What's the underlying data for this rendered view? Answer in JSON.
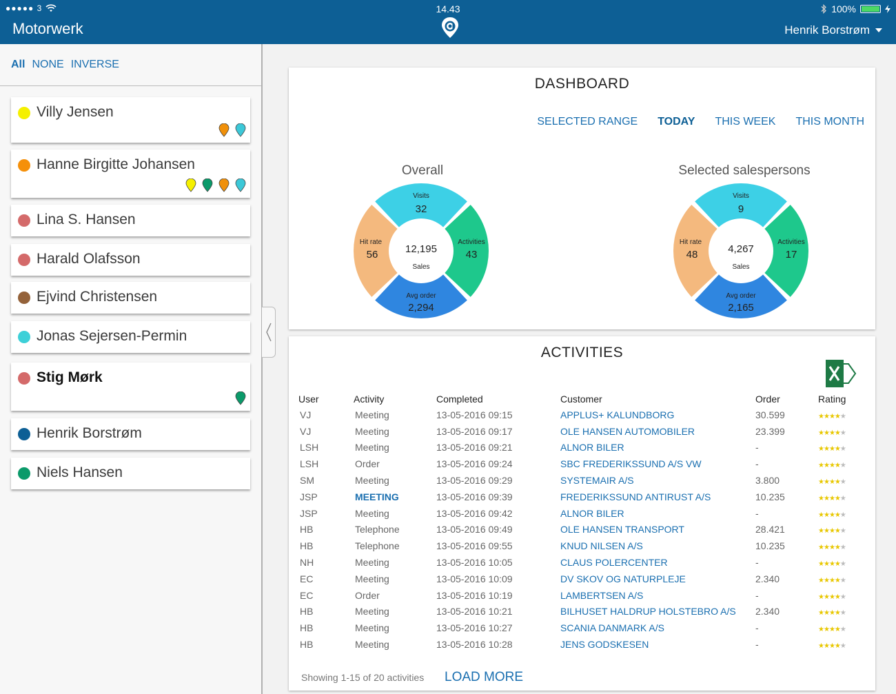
{
  "status": {
    "signal": "●●●●● 3",
    "time": "14.43",
    "battery": "100%"
  },
  "header": {
    "app_title": "Motorwerk",
    "user": "Henrik Borstrøm"
  },
  "filters": {
    "all": "All",
    "none": "NONE",
    "inverse": "INVERSE"
  },
  "salespersons": [
    {
      "name": "Villy Jensen",
      "color": "#f5f000",
      "bold": false,
      "pins": [
        "#f0900a",
        "#3cc8d8"
      ]
    },
    {
      "name": "Hanne Birgitte Johansen",
      "color": "#f5900a",
      "bold": false,
      "pins": [
        "#f5f000",
        "#0b9a6a",
        "#f0900a",
        "#3cc8d8"
      ]
    },
    {
      "name": "Lina S. Hansen",
      "color": "#d46a6a",
      "bold": false,
      "pins": []
    },
    {
      "name": "Harald Olafsson",
      "color": "#d46a6a",
      "bold": false,
      "pins": []
    },
    {
      "name": "Ejvind Christensen",
      "color": "#94623a",
      "bold": false,
      "pins": []
    },
    {
      "name": "Jonas Sejersen-Permin",
      "color": "#3dd0d8",
      "bold": false,
      "pins": []
    },
    {
      "name": "Stig Mørk",
      "color": "#d46a6a",
      "bold": true,
      "pins": [
        "#0b9a6a"
      ]
    },
    {
      "name": "Henrik Borstrøm",
      "color": "#0d5f95",
      "bold": false,
      "pins": []
    },
    {
      "name": "Niels Hansen",
      "color": "#0b9a6a",
      "bold": false,
      "pins": []
    }
  ],
  "dashboard": {
    "title": "DASHBOARD",
    "ranges": [
      "SELECTED RANGE",
      "TODAY",
      "THIS WEEK",
      "THIS MONTH"
    ],
    "selected_range": "TODAY",
    "overall": {
      "title": "Overall",
      "visits_label": "Visits",
      "visits": "32",
      "activities_label": "Activities",
      "activities": "43",
      "avg_order_label": "Avg order",
      "avg_order": "2,294",
      "hit_rate_label": "Hit rate",
      "hit_rate": "56",
      "sales": "12,195",
      "sales_label": "Sales"
    },
    "selected": {
      "title": "Selected salespersons",
      "visits_label": "Visits",
      "visits": "9",
      "activities_label": "Activities",
      "activities": "17",
      "avg_order_label": "Avg order",
      "avg_order": "2,165",
      "hit_rate_label": "Hit rate",
      "hit_rate": "48",
      "sales": "4,267",
      "sales_label": "Sales"
    },
    "segment_colors": {
      "visits": "#f4b97e",
      "activities": "#3dd0e6",
      "avg_order": "#1ec88c",
      "hit_rate": "#2f86e0"
    }
  },
  "activities": {
    "title": "ACTIVITIES",
    "columns": [
      "User",
      "Activity",
      "Completed",
      "Customer",
      "Order",
      "Rating"
    ],
    "rows": [
      {
        "user": "VJ",
        "activity": "Meeting",
        "completed": "13-05-2016  09:15",
        "customer": "APPLUS+ KALUNDBORG",
        "order": "30.599",
        "rating": 4
      },
      {
        "user": "VJ",
        "activity": "Meeting",
        "completed": "13-05-2016  09:17",
        "customer": "OLE HANSEN AUTOMOBILER",
        "order": "23.399",
        "rating": 4
      },
      {
        "user": "LSH",
        "activity": "Meeting",
        "completed": "13-05-2016  09:21",
        "customer": "ALNOR BILER",
        "order": "-",
        "rating": 4
      },
      {
        "user": "LSH",
        "activity": "Order",
        "completed": "13-05-2016  09:24",
        "customer": "SBC FREDERIKSSUND A/S VW",
        "order": "-",
        "rating": 4
      },
      {
        "user": "SM",
        "activity": "Meeting",
        "completed": "13-05-2016  09:29",
        "customer": "SYSTEMAIR A/S",
        "order": "3.800",
        "rating": 4
      },
      {
        "user": "JSP",
        "activity": "MEETING",
        "completed": "13-05-2016  09:39",
        "customer": "FREDERIKSSUND ANTIRUST A/S",
        "order": "10.235",
        "rating": 4
      },
      {
        "user": "JSP",
        "activity": "Meeting",
        "completed": "13-05-2016  09:42",
        "customer": "ALNOR BILER",
        "order": "-",
        "rating": 4
      },
      {
        "user": "HB",
        "activity": "Telephone",
        "completed": "13-05-2016  09:49",
        "customer": "OLE HANSEN TRANSPORT",
        "order": "28.421",
        "rating": 4
      },
      {
        "user": "HB",
        "activity": "Telephone",
        "completed": "13-05-2016  09:55",
        "customer": "KNUD NILSEN A/S",
        "order": "10.235",
        "rating": 4
      },
      {
        "user": "NH",
        "activity": "Meeting",
        "completed": "13-05-2016  10:05",
        "customer": "CLAUS POLERCENTER",
        "order": "-",
        "rating": 4
      },
      {
        "user": "EC",
        "activity": "Meeting",
        "completed": "13-05-2016  10:09",
        "customer": "DV SKOV OG NATURPLEJE",
        "order": "2.340",
        "rating": 4
      },
      {
        "user": "EC",
        "activity": "Order",
        "completed": "13-05-2016  10:19",
        "customer": "LAMBERTSEN A/S",
        "order": "-",
        "rating": 4
      },
      {
        "user": "HB",
        "activity": "Meeting",
        "completed": "13-05-2016  10:21",
        "customer": "BILHUSET HALDRUP HOLSTEBRO A/S",
        "order": "2.340",
        "rating": 4
      },
      {
        "user": "HB",
        "activity": "Meeting",
        "completed": "13-05-2016  10:27",
        "customer": "SCANIA DANMARK A/S",
        "order": "-",
        "rating": 4
      },
      {
        "user": "HB",
        "activity": "Meeting",
        "completed": "13-05-2016  10:28",
        "customer": "JENS GODSKESEN",
        "order": "-",
        "rating": 4
      }
    ],
    "footer": "Showing 1-15 of 20 activities",
    "load_more": "LOAD MORE"
  }
}
